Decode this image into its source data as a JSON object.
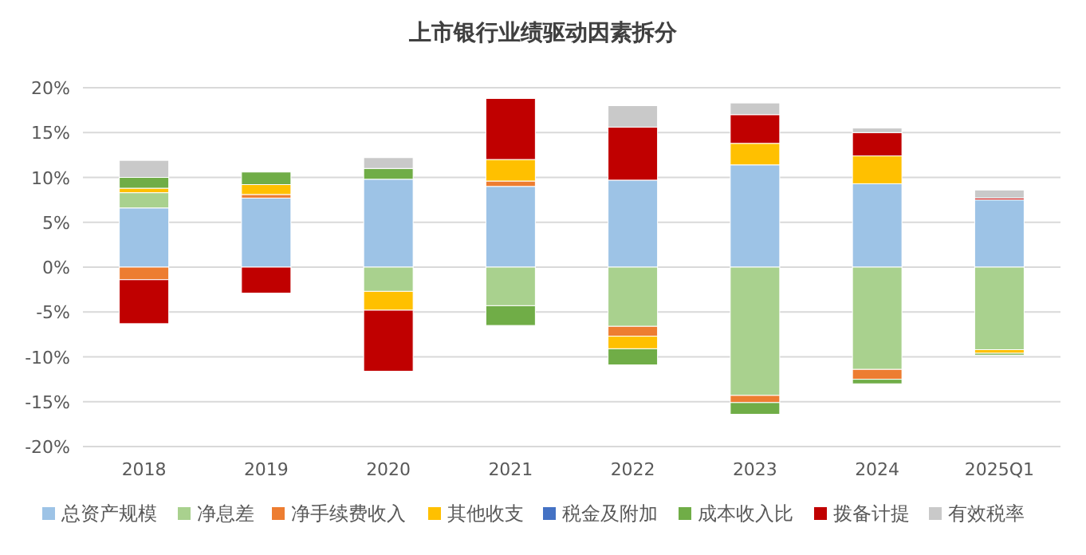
{
  "chart_data": {
    "type": "bar",
    "stacked": true,
    "title": "上市银行业绩驱动因素拆分",
    "categories": [
      "2018",
      "2019",
      "2020",
      "2021",
      "2022",
      "2023",
      "2024",
      "2025Q1"
    ],
    "series": [
      {
        "name": "总资产规模",
        "color": "#9dc3e6",
        "values": [
          6.6,
          7.7,
          9.8,
          9.0,
          9.7,
          11.4,
          9.3,
          7.5
        ]
      },
      {
        "name": "净息差",
        "color": "#a9d18e",
        "values": [
          1.7,
          null,
          -2.7,
          -4.3,
          -6.6,
          -14.3,
          -11.4,
          -9.2
        ]
      },
      {
        "name": "净手续费收入",
        "color": "#ed7d31",
        "values": [
          -1.4,
          0.4,
          0,
          0.6,
          -1.1,
          -0.8,
          -1.1,
          0
        ]
      },
      {
        "name": "其他收支",
        "color": "#ffc000",
        "values": [
          0.5,
          1.1,
          -2.1,
          2.4,
          -1.4,
          2.4,
          3.1,
          -0.4
        ]
      },
      {
        "name": "税金及附加",
        "color": "#4472c4",
        "values": [
          0,
          0,
          0,
          0,
          0,
          0,
          0,
          0
        ]
      },
      {
        "name": "成本收入比",
        "color": "#70ad47",
        "values": [
          1.2,
          1.4,
          1.2,
          -2.2,
          -1.8,
          -1.3,
          -0.5,
          -0.2
        ]
      },
      {
        "name": "拨备计提",
        "color": "#c00000",
        "values": [
          -4.9,
          -2.9,
          -6.8,
          6.8,
          5.9,
          3.2,
          2.6,
          0.2
        ]
      },
      {
        "name": "有效税率",
        "color": "#c9c9c9",
        "values": [
          1.9,
          0,
          1.2,
          0,
          2.4,
          1.3,
          0.5,
          0.9
        ]
      }
    ],
    "ylim": [
      -20,
      20
    ],
    "yticks": [
      {
        "value": -20,
        "label": "-20%"
      },
      {
        "value": -15,
        "label": "-15%"
      },
      {
        "value": -10,
        "label": "-10%"
      },
      {
        "value": -5,
        "label": "-5%"
      },
      {
        "value": 0,
        "label": "0%"
      },
      {
        "value": 5,
        "label": "5%"
      },
      {
        "value": 10,
        "label": "10%"
      },
      {
        "value": 15,
        "label": "15%"
      },
      {
        "value": 20,
        "label": "20%"
      }
    ],
    "grid": "y",
    "legend": "bottom"
  }
}
